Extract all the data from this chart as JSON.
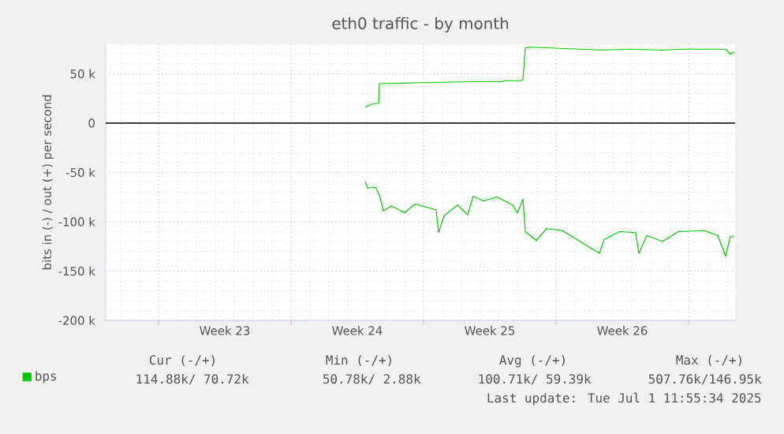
{
  "chart_data": {
    "type": "line",
    "title": "eth0 traffic - by month",
    "ylabel": "bits in (-) / out (+) per second",
    "xlim": [
      "2025-05-29T05:00",
      "2025-07-01T11:00"
    ],
    "ylim": [
      -200000,
      80000
    ],
    "xticks": [
      {
        "value": "2025-06-01",
        "label": null
      },
      {
        "value": "2025-06-04T12:00",
        "label": "Week 23"
      },
      {
        "value": "2025-06-08",
        "label": null
      },
      {
        "value": "2025-06-11T12:00",
        "label": "Week 24"
      },
      {
        "value": "2025-06-15",
        "label": null
      },
      {
        "value": "2025-06-18T12:00",
        "label": "Week 25"
      },
      {
        "value": "2025-06-22",
        "label": null
      },
      {
        "value": "2025-06-25T12:00",
        "label": "Week 26"
      },
      {
        "value": "2025-06-29",
        "label": null
      }
    ],
    "yticks": [
      {
        "value": -200000,
        "label": "-200 k"
      },
      {
        "value": -150000,
        "label": "-150 k"
      },
      {
        "value": -100000,
        "label": "-100 k"
      },
      {
        "value": -50000,
        "label": "-50 k"
      },
      0,
      {
        "value": 50000,
        "label": "50 k"
      }
    ],
    "grid": true,
    "legend": "bottom left",
    "ref_lines": [
      {
        "axis": "y",
        "value": 0,
        "color": "#000000"
      }
    ],
    "series": [
      {
        "name": "bps",
        "color": "#00cc00",
        "x": [
          "2025-06-11T22:00",
          "2025-06-12T05:00",
          "2025-06-12T15:00",
          "2025-06-12T16:00",
          "2025-06-14T20:00",
          "2025-06-17T15:00",
          "2025-06-19T03:00",
          "2025-06-19T07:00",
          "2025-06-20T03:00",
          "2025-06-20T06:00",
          "2025-06-20T09:00",
          "2025-06-20T16:00",
          "2025-06-23T04:00",
          "2025-06-24T10:00",
          "2025-06-25T23:00",
          "2025-06-27T15:00",
          "2025-06-28T17:00",
          "2025-06-30T23:00",
          "2025-07-01T05:00",
          "2025-07-01T10:00"
        ],
        "values": [
          16000,
          19000,
          20000,
          40000,
          41000,
          42000,
          42000,
          43000,
          43000,
          44000,
          76000,
          77000,
          75000,
          74000,
          75000,
          74000,
          75000,
          75000,
          70000,
          72000
        ]
      },
      {
        "color": "#00cc00",
        "x": [
          "2025-06-11T22:00",
          "2025-06-12T01:00",
          "2025-06-12T11:00",
          "2025-06-12T16:00",
          "2025-06-12T21:00",
          "2025-06-13T07:00",
          "2025-06-14T00:00",
          "2025-06-14T13:00",
          "2025-06-15T16:00",
          "2025-06-15T19:00",
          "2025-06-16T02:00",
          "2025-06-16T19:00",
          "2025-06-17T08:00",
          "2025-06-17T15:00",
          "2025-06-18T04:00",
          "2025-06-18T21:00",
          "2025-06-19T17:00",
          "2025-06-19T23:00",
          "2025-06-20T06:00",
          "2025-06-20T09:00",
          "2025-06-20T23:00",
          "2025-06-21T12:00",
          "2025-06-22T08:00",
          "2025-06-24T07:00",
          "2025-06-24T13:00",
          "2025-06-25T09:00",
          "2025-06-26T05:00",
          "2025-06-26T09:00",
          "2025-06-26T19:00",
          "2025-06-27T15:00",
          "2025-06-28T11:00",
          "2025-06-29T20:00",
          "2025-06-30T13:00",
          "2025-06-30T23:00",
          "2025-07-01T05:00",
          "2025-07-01T10:00"
        ],
        "values": [
          -59000,
          -66000,
          -65000,
          -73000,
          -89000,
          -84000,
          -91000,
          -82000,
          -88000,
          -111000,
          -94000,
          -83000,
          -93000,
          -74000,
          -79000,
          -75000,
          -83000,
          -91000,
          -77000,
          -110000,
          -119000,
          -107000,
          -109000,
          -132000,
          -118000,
          -110000,
          -111000,
          -132000,
          -114000,
          -120000,
          -110000,
          -109000,
          -114000,
          -135000,
          -115000,
          -115000
        ]
      }
    ],
    "annotations": [
      "Cur (-/+)",
      "Min (-/+)",
      "Avg (-/+)",
      "Max (-/+)",
      "114.88k/ 70.72k",
      "50.78k/ 2.88k",
      "100.71k/ 59.39k",
      "507.76k/146.95k",
      "Last update: Tue Jul 1 11:55:34 2025"
    ]
  }
}
